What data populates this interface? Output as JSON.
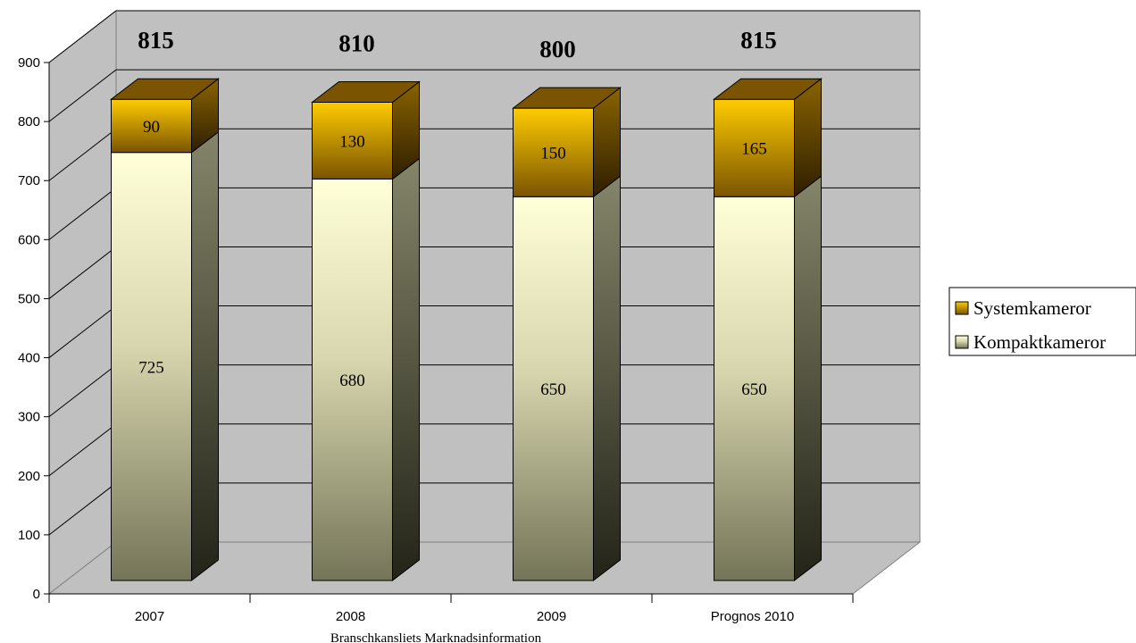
{
  "chart_data": {
    "type": "bar",
    "stacked": true,
    "three_d": true,
    "categories": [
      "2007",
      "2008",
      "2009",
      "Prognos 2010"
    ],
    "series": [
      {
        "name": "Kompaktkameror",
        "values": [
          725,
          680,
          650,
          650
        ]
      },
      {
        "name": "Systemkameror",
        "values": [
          90,
          130,
          150,
          165
        ]
      }
    ],
    "totals": [
      "815",
      "810",
      "800",
      "815"
    ],
    "yticks": [
      0,
      100,
      200,
      300,
      400,
      500,
      600,
      700,
      800,
      900
    ],
    "ylim": [
      0,
      900
    ],
    "grid": true,
    "legend_position": "right",
    "source": "Branschkansliets Marknadsinformation",
    "colors": {
      "wall": "#c0c0c0",
      "floor": "#c0c0c0",
      "grid": "#000000",
      "kompakt_light": "#ffffd8",
      "kompakt_dark": "#7a7a60",
      "system_light": "#ffcc00",
      "system_dark": "#7a5400"
    }
  }
}
